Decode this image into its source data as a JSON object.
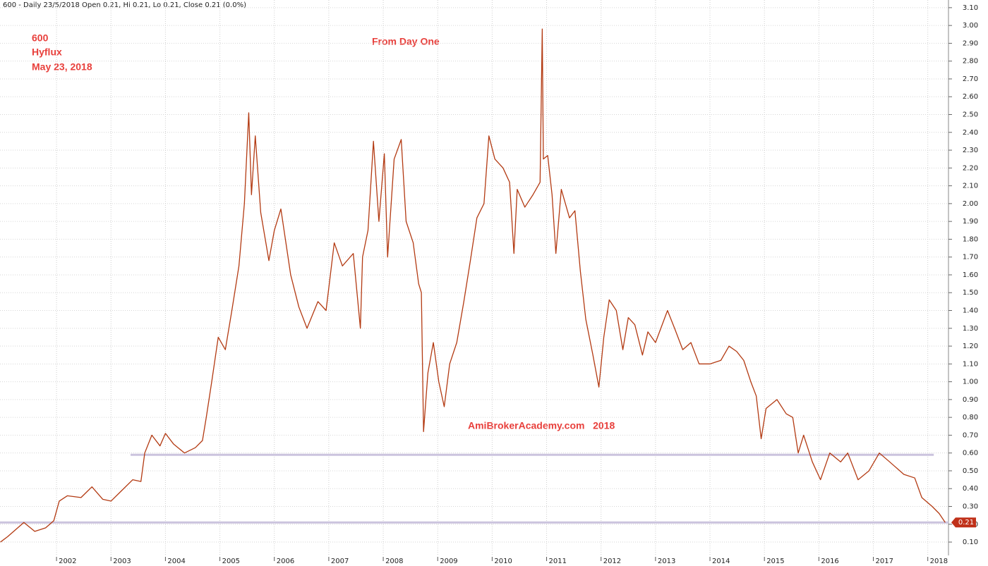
{
  "chart_data": {
    "type": "line",
    "header": "600 - Daily 23/5/2018 Open 0.21, Hi 0.21, Lo 0.21, Close 0.21 (0.0%)",
    "annotations": [
      "600",
      "Hyflux",
      "May 23, 2018",
      "From Day One",
      "AmiBrokerAcademy.com   2018"
    ],
    "xlim": [
      2000.962,
      2018.38
    ],
    "xticks": [
      2002,
      2003,
      2004,
      2005,
      2006,
      2007,
      2008,
      2009,
      2010,
      2011,
      2012,
      2013,
      2014,
      2015,
      2016,
      2017,
      2018
    ],
    "ylim": [
      0.025,
      3.143
    ],
    "yticks": [
      {
        "value": 0.1,
        "label": "0.10"
      },
      {
        "value": 0.2,
        "label": "0.20"
      },
      {
        "value": 0.3,
        "label": "0.30"
      },
      {
        "value": 0.4,
        "label": "0.40"
      },
      {
        "value": 0.5,
        "label": "0.50"
      },
      {
        "value": 0.6,
        "label": "0.60"
      },
      {
        "value": 0.7,
        "label": "0.70"
      },
      {
        "value": 0.8,
        "label": "0.80"
      },
      {
        "value": 0.9,
        "label": "0.90"
      },
      {
        "value": 1.0,
        "label": "1.00"
      },
      {
        "value": 1.1,
        "label": "1.10"
      },
      {
        "value": 1.2,
        "label": "1.20"
      },
      {
        "value": 1.3,
        "label": "1.30"
      },
      {
        "value": 1.4,
        "label": "1.40"
      },
      {
        "value": 1.5,
        "label": "1.50"
      },
      {
        "value": 1.6,
        "label": "1.60"
      },
      {
        "value": 1.7,
        "label": "1.70"
      },
      {
        "value": 1.8,
        "label": "1.80"
      },
      {
        "value": 1.9,
        "label": "1.90"
      },
      {
        "value": 2.0,
        "label": "2.00"
      },
      {
        "value": 2.1,
        "label": "2.10"
      },
      {
        "value": 2.2,
        "label": "2.20"
      },
      {
        "value": 2.3,
        "label": "2.30"
      },
      {
        "value": 2.4,
        "label": "2.40"
      },
      {
        "value": 2.5,
        "label": "2.50"
      },
      {
        "value": 2.6,
        "label": "2.60"
      },
      {
        "value": 2.7,
        "label": "2.70"
      },
      {
        "value": 2.8,
        "label": "2.80"
      },
      {
        "value": 2.9,
        "label": "2.90"
      },
      {
        "value": 3.0,
        "label": "3.00"
      },
      {
        "value": 3.1,
        "label": "3.10"
      }
    ],
    "grid": true,
    "series": [
      {
        "color": "#b33a12",
        "x": [
          2000.97,
          2001.1,
          2001.25,
          2001.4,
          2001.6,
          2001.8,
          2001.95,
          2002.05,
          2002.2,
          2002.45,
          2002.65,
          2002.85,
          2003.0,
          2003.2,
          2003.4,
          2003.55,
          2003.62,
          2003.75,
          2003.9,
          2004.0,
          2004.15,
          2004.35,
          2004.55,
          2004.68,
          2004.75,
          2004.85,
          2004.97,
          2005.1,
          2005.22,
          2005.35,
          2005.45,
          2005.53,
          2005.58,
          2005.65,
          2005.75,
          2005.9,
          2006.0,
          2006.12,
          2006.3,
          2006.45,
          2006.6,
          2006.8,
          2006.95,
          2007.1,
          2007.25,
          2007.45,
          2007.58,
          2007.62,
          2007.72,
          2007.82,
          2007.92,
          2008.02,
          2008.08,
          2008.2,
          2008.33,
          2008.42,
          2008.55,
          2008.65,
          2008.7,
          2008.74,
          2008.82,
          2008.92,
          2009.02,
          2009.12,
          2009.22,
          2009.35,
          2009.48,
          2009.6,
          2009.72,
          2009.85,
          2009.94,
          2010.05,
          2010.2,
          2010.32,
          2010.4,
          2010.46,
          2010.6,
          2010.75,
          2010.88,
          2010.92,
          2010.94,
          2011.02,
          2011.1,
          2011.17,
          2011.27,
          2011.42,
          2011.52,
          2011.62,
          2011.72,
          2011.85,
          2011.96,
          2012.05,
          2012.15,
          2012.28,
          2012.4,
          2012.5,
          2012.62,
          2012.76,
          2012.86,
          2013.0,
          2013.22,
          2013.35,
          2013.5,
          2013.65,
          2013.8,
          2014.0,
          2014.2,
          2014.35,
          2014.49,
          2014.62,
          2014.75,
          2014.85,
          2014.94,
          2015.03,
          2015.23,
          2015.4,
          2015.52,
          2015.62,
          2015.72,
          2015.88,
          2016.03,
          2016.2,
          2016.4,
          2016.53,
          2016.72,
          2016.92,
          2017.11,
          2017.3,
          2017.56,
          2017.76,
          2017.89,
          2018.08,
          2018.21,
          2018.32
        ],
        "values": [
          0.1,
          0.13,
          0.17,
          0.21,
          0.16,
          0.18,
          0.22,
          0.33,
          0.36,
          0.35,
          0.41,
          0.34,
          0.33,
          0.39,
          0.45,
          0.44,
          0.6,
          0.7,
          0.64,
          0.71,
          0.65,
          0.6,
          0.63,
          0.67,
          0.8,
          1.0,
          1.25,
          1.18,
          1.4,
          1.65,
          2.0,
          2.51,
          2.05,
          2.38,
          1.95,
          1.68,
          1.85,
          1.97,
          1.6,
          1.42,
          1.3,
          1.45,
          1.4,
          1.78,
          1.65,
          1.72,
          1.3,
          1.7,
          1.85,
          2.35,
          1.9,
          2.28,
          1.7,
          2.25,
          2.36,
          1.9,
          1.78,
          1.55,
          1.5,
          0.72,
          1.05,
          1.22,
          1.0,
          0.86,
          1.1,
          1.22,
          1.45,
          1.68,
          1.92,
          2.0,
          2.38,
          2.25,
          2.2,
          2.12,
          1.72,
          2.08,
          1.98,
          2.05,
          2.12,
          2.98,
          2.25,
          2.27,
          2.05,
          1.72,
          2.08,
          1.92,
          1.96,
          1.62,
          1.35,
          1.15,
          0.97,
          1.25,
          1.46,
          1.4,
          1.18,
          1.36,
          1.32,
          1.15,
          1.28,
          1.22,
          1.4,
          1.3,
          1.18,
          1.22,
          1.1,
          1.1,
          1.12,
          1.2,
          1.17,
          1.12,
          1.0,
          0.92,
          0.68,
          0.85,
          0.9,
          0.82,
          0.8,
          0.6,
          0.7,
          0.55,
          0.45,
          0.6,
          0.55,
          0.6,
          0.45,
          0.5,
          0.6,
          0.55,
          0.48,
          0.46,
          0.35,
          0.3,
          0.26,
          0.21
        ]
      }
    ],
    "hlines": [
      {
        "value": 0.59,
        "xlim": [
          2003.36,
          2018.11
        ],
        "color": "#cbc3de"
      },
      {
        "value": 0.21,
        "xlim": [
          2000.962,
          2018.38
        ],
        "color": "#cbc3de"
      }
    ],
    "last_value": 0.21,
    "last_color": "#c0311a"
  }
}
